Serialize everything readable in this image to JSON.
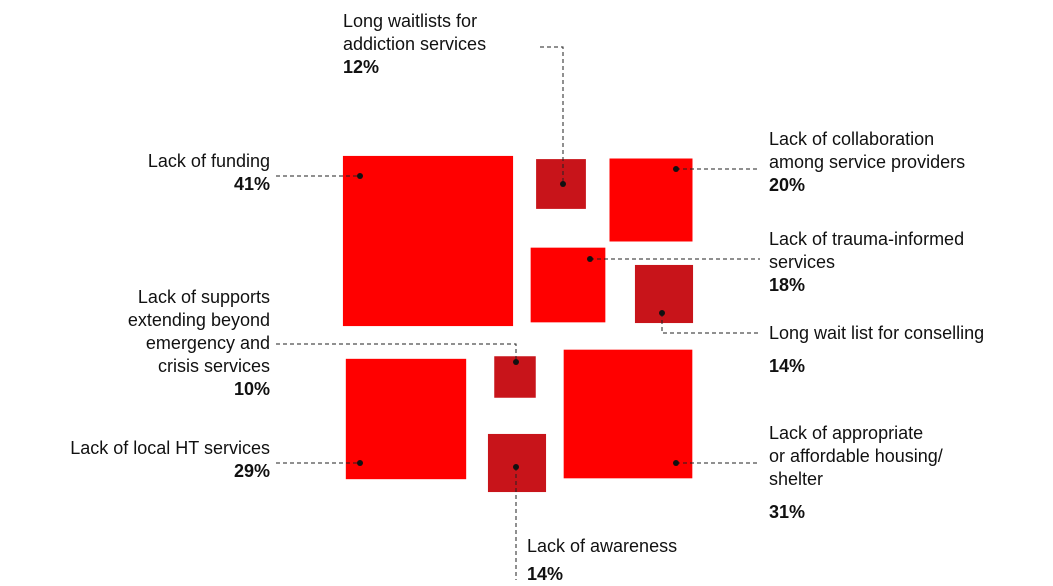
{
  "chart_data": {
    "type": "squares",
    "categories": [
      "Long waitlists for\naddiction services",
      "Lack of funding",
      "Lack of collaboration\namong service providers",
      "Lack of trauma-informed\nservices",
      "Long wait list for conselling",
      "Lack of supports\nextending beyond\nemergency and\ncrisis services",
      "Lack of local HT services",
      "Lack of awareness",
      "Lack of appropriate\nor affordable housing/\nshelter"
    ],
    "values": [
      12,
      41,
      20,
      18,
      14,
      10,
      29,
      14,
      31
    ],
    "value_labels": [
      "12%",
      "41%",
      "20%",
      "18%",
      "14%",
      "10%",
      "29%",
      "14%",
      "31%"
    ],
    "colors": [
      "#c8141a",
      "#ff0000",
      "#ff0000",
      "#ff0000",
      "#c8141a",
      "#c8141a",
      "#ff0000",
      "#c8141a",
      "#ff0000"
    ]
  }
}
